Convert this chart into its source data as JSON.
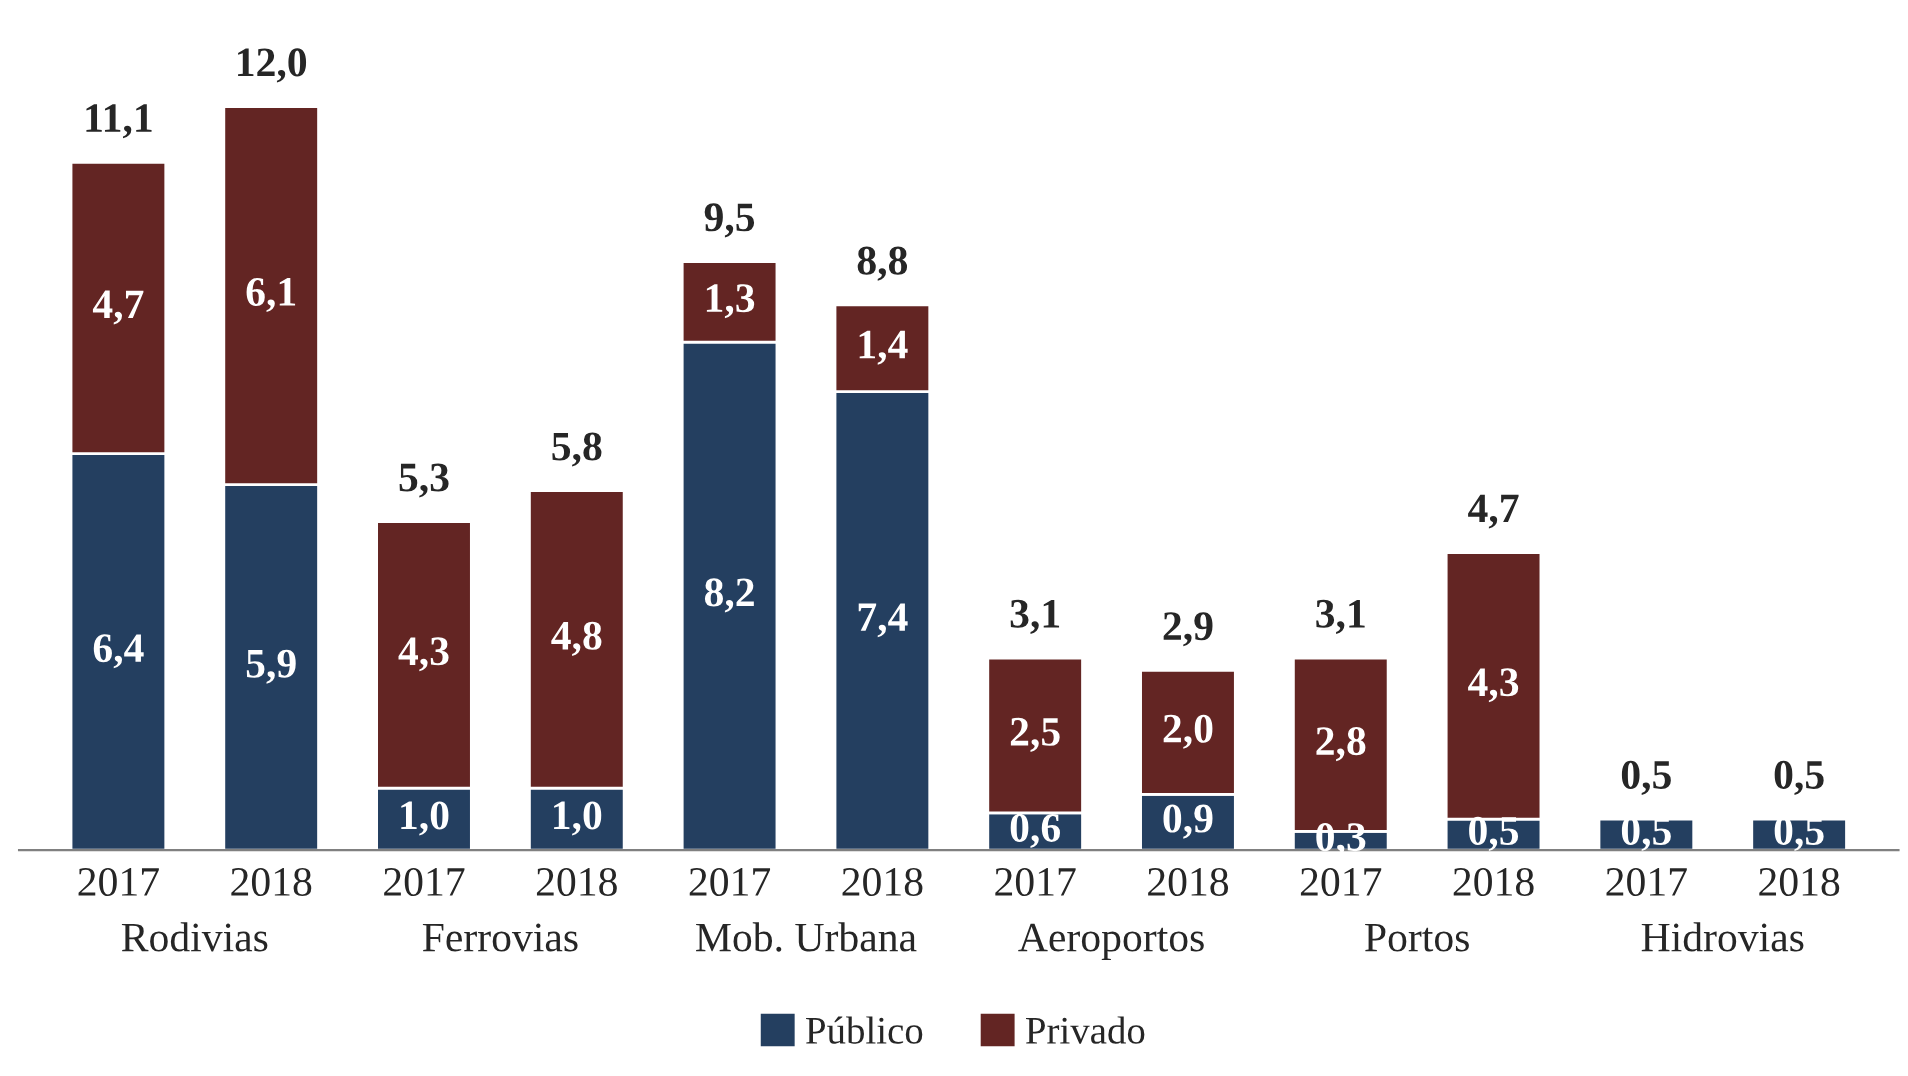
{
  "chart_data": {
    "type": "bar",
    "stacked": true,
    "legend": "bottom",
    "categories": [
      "2017",
      "2018",
      "2017",
      "2018",
      "2017",
      "2018",
      "2017",
      "2018",
      "2017",
      "2018",
      "2017",
      "2018"
    ],
    "series": [
      {
        "name": "Público",
        "color": "#243f60",
        "values": [
          6.4,
          5.9,
          1.0,
          1.0,
          8.2,
          7.4,
          0.6,
          0.9,
          0.3,
          0.5,
          0.5,
          0.5
        ],
        "value_labels": [
          "6,4",
          "5,9",
          "1,0",
          "1,0",
          "8,2",
          "7,4",
          "0,6",
          "0,9",
          "0,3",
          "0,5",
          "0,5",
          "0,5"
        ]
      },
      {
        "name": "Privado",
        "color": "#632523",
        "values": [
          4.7,
          6.1,
          4.3,
          4.8,
          1.3,
          1.4,
          2.5,
          2.0,
          2.8,
          4.3,
          null,
          null
        ],
        "value_labels": [
          "4,7",
          "6,1",
          "4,3",
          "4,8",
          "1,3",
          "1,4",
          "2,5",
          "2,0",
          "2,8",
          "4,3",
          null,
          null
        ]
      }
    ],
    "totals": [
      "11,1",
      "12,0",
      "5,3",
      "5,8",
      "9,5",
      "8,8",
      "3,1",
      "2,9",
      "3,1",
      "4,7",
      "0,5",
      "0,5"
    ],
    "annotations": [
      "Rodivias",
      "Ferrovias",
      "Mob. Urbana",
      "Aeroportos",
      "Portos",
      "Hidrovias"
    ]
  }
}
